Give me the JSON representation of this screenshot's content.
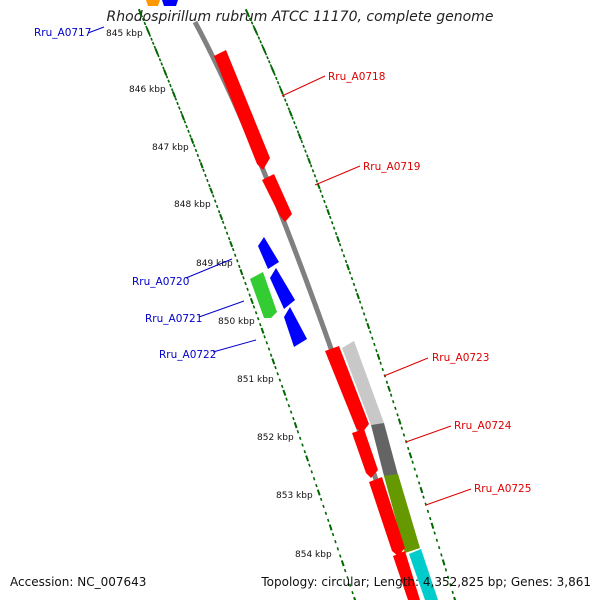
{
  "title": "Rhodospirillum rubrum ATCC 11170, complete genome",
  "footer": {
    "accession": "Accession: NC_007643",
    "topology": "Topology: circular; Length: 4,352,825 bp; Genes: 3,861"
  },
  "kbp_labels": [
    "845 kbp",
    "846 kbp",
    "847 kbp",
    "848 kbp",
    "849 kbp",
    "850 kbp",
    "851 kbp",
    "852 kbp",
    "853 kbp",
    "854 kbp"
  ],
  "gene_labels": [
    {
      "text": "Rru_A0717",
      "color": "#0000cc"
    },
    {
      "text": "Rru_A0718",
      "color": "#dd0000"
    },
    {
      "text": "Rru_A0719",
      "color": "#dd0000"
    },
    {
      "text": "Rru_A0720",
      "color": "#0000cc"
    },
    {
      "text": "Rru_A0721",
      "color": "#0000cc"
    },
    {
      "text": "Rru_A0722",
      "color": "#0000cc"
    },
    {
      "text": "Rru_A0723",
      "color": "#dd0000"
    },
    {
      "text": "Rru_A0724",
      "color": "#dd0000"
    },
    {
      "text": "Rru_A0725",
      "color": "#dd0000"
    }
  ],
  "colors": {
    "backbone": "#808080",
    "tick": "#006600",
    "forward_gene": "#ff0000",
    "reverse_gene": "#0000ff",
    "green_gene": "#33cc33",
    "light_gray": "#c8c8c8",
    "dark_gray": "#646464",
    "olive": "#669900",
    "cyan": "#00cccc",
    "orange": "#ff9900"
  }
}
